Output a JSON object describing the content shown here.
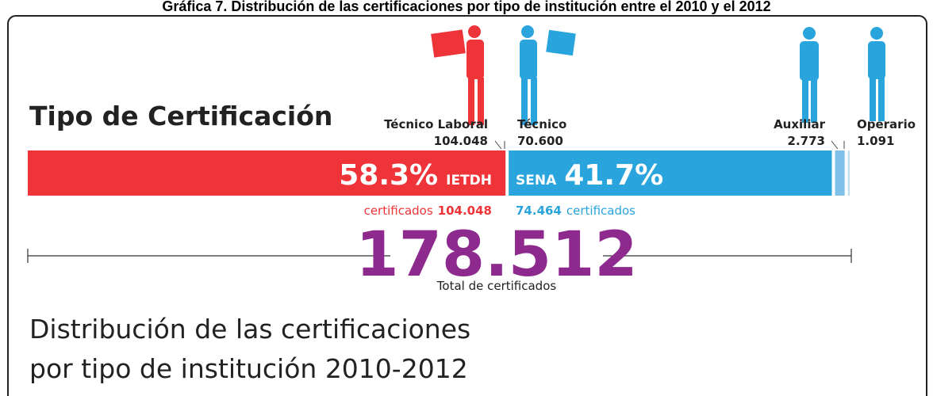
{
  "chart_data": {
    "type": "stacked-bar",
    "caption": "Gráfica 7. Distribución de las certificaciones por tipo de institución entre el 2010 y el 2012",
    "title": "Tipo de Certificación",
    "subtitle": [
      "Distribución de las certificaciones",
      "por tipo de institución 2010-2012"
    ],
    "categories": [
      "Técnico Laboral",
      "Técnico",
      "Auxiliar",
      "Operario"
    ],
    "values": [
      104048,
      70600,
      2773,
      1091
    ],
    "value_labels": [
      "104.048",
      "70.600",
      "2.773",
      "1.091"
    ],
    "colors": [
      "#ee3439",
      "#29a4dc",
      "#7fc0e8",
      "#bfe0f4"
    ],
    "groups": [
      {
        "name": "IETDH",
        "share": 58.3,
        "share_label": "58.3%",
        "count": 104048,
        "count_label": "104.048",
        "unit": "certificados",
        "color": "#ee3439"
      },
      {
        "name": "SENA",
        "share": 41.7,
        "share_label": "41.7%",
        "count": 74464,
        "count_label": "74.464",
        "unit": "certificados",
        "color": "#29a4dc"
      }
    ],
    "total": 178512,
    "total_label": "178.512",
    "total_caption": "Total de certificados",
    "total_color": "#8e2a8e"
  }
}
